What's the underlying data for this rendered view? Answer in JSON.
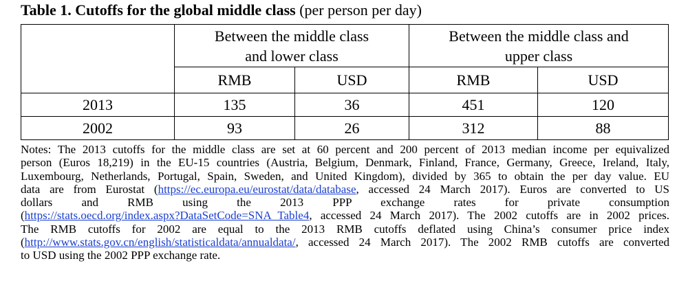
{
  "title": {
    "bold": "Table 1. Cutoffs for the global middle class",
    "normal": "(per person per day)"
  },
  "table": {
    "group_headers": [
      "Between the middle class and lower class",
      "Between the middle class and upper class"
    ],
    "group_header_lines": [
      [
        "Between the middle class",
        "and lower class"
      ],
      [
        "Between the middle class and",
        "upper class"
      ]
    ],
    "sub_headers": [
      "RMB",
      "USD",
      "RMB",
      "USD"
    ],
    "rows": [
      {
        "year": "2013",
        "values": [
          "135",
          "36",
          "451",
          "120"
        ]
      },
      {
        "year": "2002",
        "values": [
          "93",
          "26",
          "312",
          "88"
        ]
      }
    ]
  },
  "notes": {
    "lines": [
      {
        "pre": "Notes: The 2013 cutoffs for the middle class are set at 60 percent and 200 percent of 2013 median income per equivalized",
        "link": "",
        "post": ""
      },
      {
        "pre": "person (Euros 18,219) in the EU-15 countries (Austria, Belgium, Denmark, Finland, France, Germany, Greece, Ireland, Italy,",
        "link": "",
        "post": ""
      },
      {
        "pre": "Luxembourg, Netherlands, Portugal, Spain, Sweden, and United Kingdom), divided by 365 to obtain the per day value. EU",
        "link": "",
        "post": ""
      },
      {
        "pre": "data are from Eurostat (",
        "link": "https://ec.europa.eu/eurostat/data/database",
        "post": ", accessed 24 March 2017). Euros are converted to US"
      },
      {
        "pre": "dollars and RMB using the 2013 PPP exchange rates for private consumption",
        "link": "",
        "post": ""
      },
      {
        "pre": "(",
        "link": "https://stats.oecd.org/index.aspx?DataSetCode=SNA_Table4",
        "post": ", accessed 24 March 2017). The 2002 cutoffs are in 2002 prices."
      },
      {
        "pre": "The RMB cutoffs for 2002 are equal to the 2013 RMB cutoffs deflated using China’s consumer price index",
        "link": "",
        "post": ""
      },
      {
        "pre": "(",
        "link": "http://www.stats.gov.cn/english/statisticaldata/annualdata/",
        "post": ", accessed 24 March 2017). The 2002 RMB cutoffs are converted"
      },
      {
        "pre": "to USD using the 2002 PPP exchange rate.",
        "link": "",
        "post": ""
      }
    ]
  }
}
